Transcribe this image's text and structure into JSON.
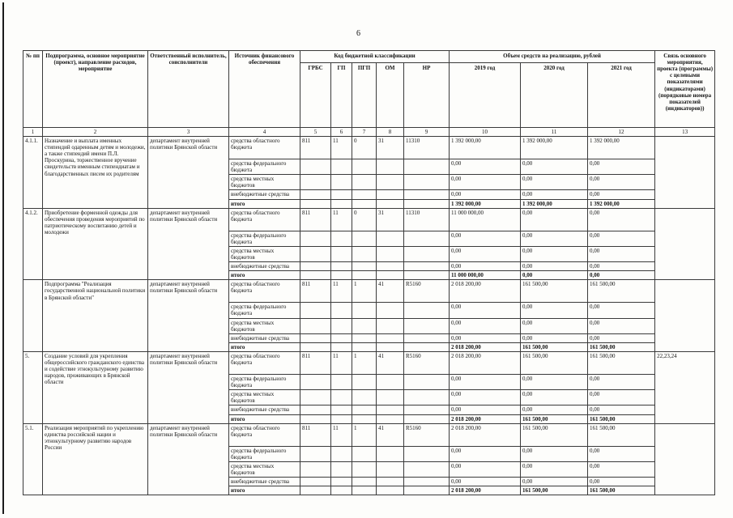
{
  "page_number": "6",
  "table": {
    "header": {
      "num": "№ пп",
      "program": "Подпрограмма, основное мероприятие (проект), направление расходов, мероприятие",
      "executor": "Ответственный исполнитель, соисполнители",
      "source": "Источник финансового обеспечения",
      "kbk": "Код бюджетной классификации",
      "kbk_cols": [
        "ГРБС",
        "ГП",
        "ПГП",
        "ОМ",
        "НР"
      ],
      "volume": "Объем средств на реализацию, рублей",
      "years": [
        "2019 год",
        "2020 год",
        "2021 год"
      ],
      "link": "Связь основного мероприятия, проекта (программы) с целевыми показателями (индикаторами) (порядковые номера показателей (индикаторов))",
      "numbering": [
        "1",
        "2",
        "3",
        "4",
        "5",
        "6",
        "7",
        "8",
        "9",
        "10",
        "11",
        "12",
        "13"
      ]
    },
    "blocks": [
      {
        "num": "4.1.1.",
        "program": "Назначение и выплата именных стипендий одаренным детям и молодежи, а также стипендий имени П.Л. Проскурина, торжественное вручение свидетельств именным стипендиатам и благодарственных писем их родителям",
        "executor": "департамент внутренней политики Брянской области",
        "link": "",
        "rows": [
          {
            "source": "средства областного бюджета",
            "kbk": [
              "811",
              "11",
              "0",
              "31",
              "11310"
            ],
            "amounts": [
              "1 392 000,00",
              "1 392 000,00",
              "1 392 000,00"
            ]
          },
          {
            "source": "средства федерального бюджета",
            "kbk": [
              "",
              "",
              "",
              "",
              ""
            ],
            "amounts": [
              "0,00",
              "0,00",
              "0,00"
            ]
          },
          {
            "source": "средства местных бюджетов",
            "kbk": [
              "",
              "",
              "",
              "",
              ""
            ],
            "amounts": [
              "0,00",
              "0,00",
              "0,00"
            ]
          },
          {
            "source": "внебюджетные средства",
            "kbk": [
              "",
              "",
              "",
              "",
              ""
            ],
            "amounts": [
              "0,00",
              "0,00",
              "0,00"
            ]
          },
          {
            "source": "итого",
            "total": true,
            "kbk": [
              "",
              "",
              "",
              "",
              ""
            ],
            "amounts": [
              "1 392 000,00",
              "1 392 000,00",
              "1 392 000,00"
            ]
          }
        ]
      },
      {
        "num": "4.1.2.",
        "program": "Приобретение форменной одежды для обеспечения проведения мероприятий по патриотическому воспитанию детей и молодежи",
        "executor": "департамент внутренней политики Брянской области",
        "link": "",
        "rows": [
          {
            "source": "средства областного бюджета",
            "kbk": [
              "811",
              "11",
              "0",
              "31",
              "11310"
            ],
            "amounts": [
              "11 000 000,00",
              "0,00",
              "0,00"
            ]
          },
          {
            "source": "средства федерального бюджета",
            "kbk": [
              "",
              "",
              "",
              "",
              ""
            ],
            "amounts": [
              "0,00",
              "0,00",
              "0,00"
            ]
          },
          {
            "source": "средства местных бюджетов",
            "kbk": [
              "",
              "",
              "",
              "",
              ""
            ],
            "amounts": [
              "0,00",
              "0,00",
              "0,00"
            ]
          },
          {
            "source": "внебюджетные средства",
            "kbk": [
              "",
              "",
              "",
              "",
              ""
            ],
            "amounts": [
              "0,00",
              "0,00",
              "0,00"
            ]
          },
          {
            "source": "итого",
            "total": true,
            "kbk": [
              "",
              "",
              "",
              "",
              ""
            ],
            "amounts": [
              "11 000 000,00",
              "0,00",
              "0,00"
            ]
          }
        ]
      },
      {
        "num": "",
        "program": "Подпрограмма \"Реализация государственной национальной политики в Брянской области\"",
        "executor": "департамент внутренней политики Брянской области",
        "link": "",
        "rows": [
          {
            "source": "средства областного бюджета",
            "kbk": [
              "811",
              "11",
              "1",
              "41",
              "R5160"
            ],
            "amounts": [
              "2 018 200,00",
              "161 500,00",
              "161 500,00"
            ]
          },
          {
            "source": "средства федерального бюджета",
            "kbk": [
              "",
              "",
              "",
              "",
              ""
            ],
            "amounts": [
              "0,00",
              "0,00",
              "0,00"
            ]
          },
          {
            "source": "средства местных бюджетов",
            "kbk": [
              "",
              "",
              "",
              "",
              ""
            ],
            "amounts": [
              "0,00",
              "0,00",
              "0,00"
            ]
          },
          {
            "source": "внебюджетные средства",
            "kbk": [
              "",
              "",
              "",
              "",
              ""
            ],
            "amounts": [
              "0,00",
              "0,00",
              "0,00"
            ]
          },
          {
            "source": "итого",
            "total": true,
            "kbk": [
              "",
              "",
              "",
              "",
              ""
            ],
            "amounts": [
              "2 018 200,00",
              "161 500,00",
              "161 500,00"
            ]
          }
        ]
      },
      {
        "num": "5.",
        "program": "Создание условий для укрепления общероссийского гражданского единства и содействие этнокультурному развитию народов, проживающих в Брянской области",
        "executor": "департамент внутренней политики Брянской области",
        "link": "22,23,24",
        "rows": [
          {
            "source": "средства областного бюджета",
            "kbk": [
              "811",
              "11",
              "1",
              "41",
              "R5160"
            ],
            "amounts": [
              "2 018 200,00",
              "161 500,00",
              "161 500,00"
            ]
          },
          {
            "source": "средства федерального бюджета",
            "kbk": [
              "",
              "",
              "",
              "",
              ""
            ],
            "amounts": [
              "0,00",
              "0,00",
              "0,00"
            ]
          },
          {
            "source": "средства местных бюджетов",
            "kbk": [
              "",
              "",
              "",
              "",
              ""
            ],
            "amounts": [
              "0,00",
              "0,00",
              "0,00"
            ]
          },
          {
            "source": "внебюджетные средства",
            "kbk": [
              "",
              "",
              "",
              "",
              ""
            ],
            "amounts": [
              "0,00",
              "0,00",
              "0,00"
            ]
          },
          {
            "source": "итого",
            "total": true,
            "kbk": [
              "",
              "",
              "",
              "",
              ""
            ],
            "amounts": [
              "2 018 200,00",
              "161 500,00",
              "161 500,00"
            ]
          }
        ]
      },
      {
        "num": "5.1.",
        "program": "Реализация мероприятий по укреплению единства российской нации и этнокультурному развитию народов России",
        "executor": "департамент внутренней политики Брянской области",
        "link": "",
        "rows": [
          {
            "source": "средства областного бюджета",
            "kbk": [
              "811",
              "11",
              "1",
              "41",
              "R5160"
            ],
            "amounts": [
              "2 018 200,00",
              "161 500,00",
              "161 500,00"
            ]
          },
          {
            "source": "средства федерального бюджета",
            "kbk": [
              "",
              "",
              "",
              "",
              ""
            ],
            "amounts": [
              "0,00",
              "0,00",
              "0,00"
            ]
          },
          {
            "source": "средства местных бюджетов",
            "kbk": [
              "",
              "",
              "",
              "",
              ""
            ],
            "amounts": [
              "0,00",
              "0,00",
              "0,00"
            ]
          },
          {
            "source": "внебюджетные средства",
            "kbk": [
              "",
              "",
              "",
              "",
              ""
            ],
            "amounts": [
              "0,00",
              "0,00",
              "0,00"
            ]
          },
          {
            "source": "итого",
            "total": true,
            "kbk": [
              "",
              "",
              "",
              "",
              ""
            ],
            "amounts": [
              "2 018 200,00",
              "161 500,00",
              "161 500,00"
            ]
          }
        ]
      }
    ]
  }
}
